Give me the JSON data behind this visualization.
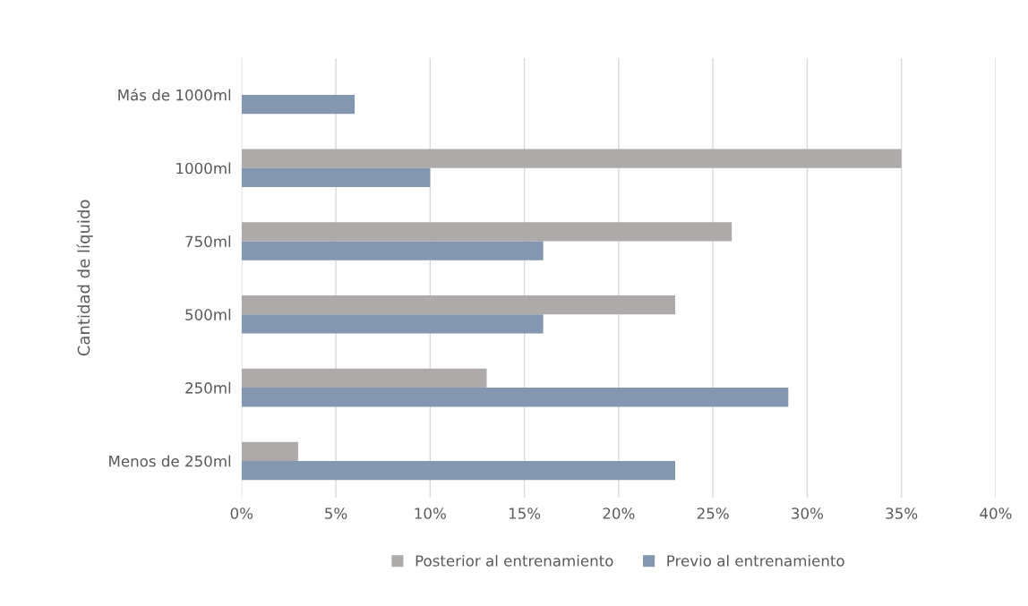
{
  "chart_data": {
    "type": "bar",
    "orientation": "horizontal",
    "ylabel": "Cantidad de líquido",
    "categories": [
      "Más de 1000ml",
      "1000ml",
      "750ml",
      "500ml",
      "250ml",
      "Menos de 250ml"
    ],
    "series": [
      {
        "name": "Posterior al entrenamiento",
        "color": "#aeaaaa",
        "values": [
          0,
          35,
          26,
          23,
          13,
          3
        ]
      },
      {
        "name": "Previo al entrenamiento",
        "color": "#8497b0",
        "values": [
          6,
          10,
          16,
          16,
          29,
          23
        ]
      }
    ],
    "xlim": [
      0,
      40
    ],
    "xticks": [
      {
        "value": 0,
        "label": "0%"
      },
      {
        "value": 5,
        "label": "5%"
      },
      {
        "value": 10,
        "label": "10%"
      },
      {
        "value": 15,
        "label": "15%"
      },
      {
        "value": 20,
        "label": "20%"
      },
      {
        "value": 25,
        "label": "25%"
      },
      {
        "value": 30,
        "label": "30%"
      },
      {
        "value": 35,
        "label": "35%"
      },
      {
        "value": 40,
        "label": "40%"
      }
    ],
    "grid": "x",
    "legend": "bottom"
  }
}
